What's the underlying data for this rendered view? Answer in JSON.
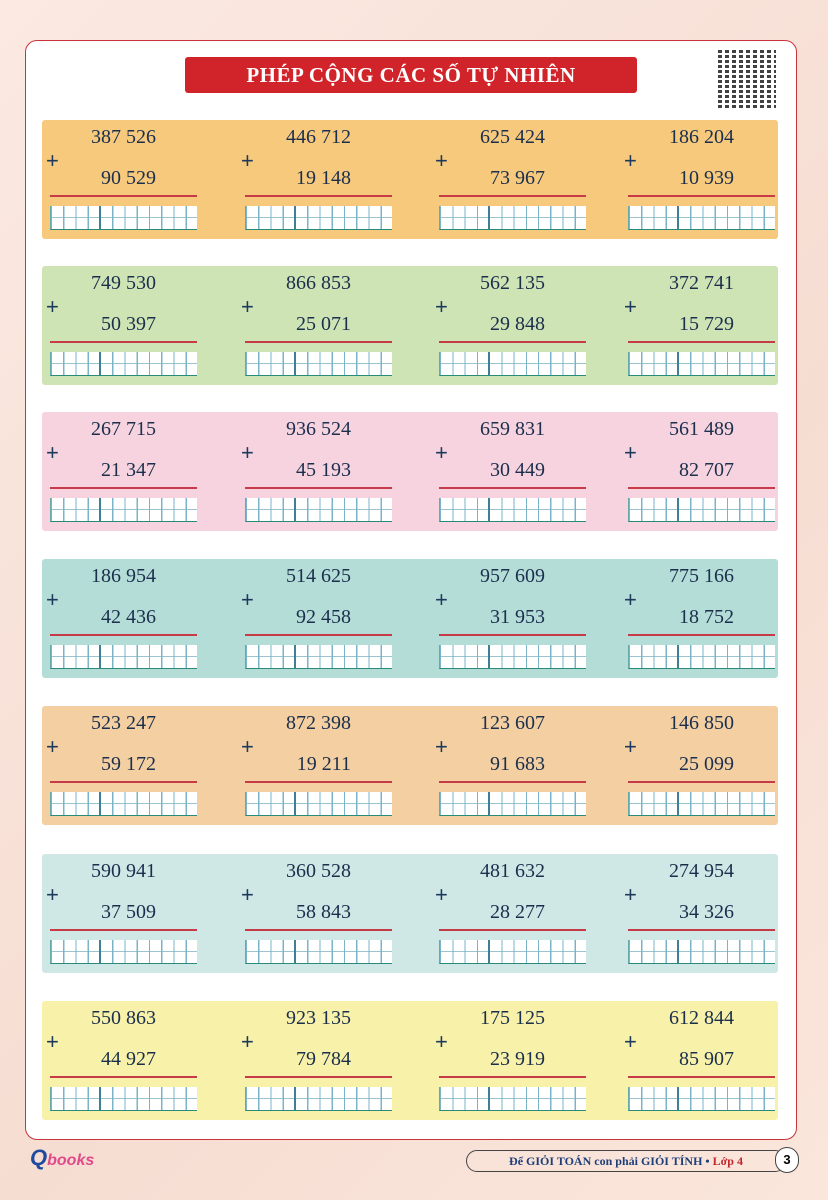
{
  "title": "PHÉP CỘNG CÁC SỐ TỰ NHIÊN",
  "operator": "+",
  "band_colors": [
    "#f7c97c",
    "#cfe4b5",
    "#f6d3df",
    "#b5ddd8",
    "#f4cfa1",
    "#cfe8e6",
    "#f8f1a9"
  ],
  "rows": [
    [
      [
        "387 526",
        "90 529"
      ],
      [
        "446 712",
        "19 148"
      ],
      [
        "625 424",
        "73 967"
      ],
      [
        "186 204",
        "10 939"
      ]
    ],
    [
      [
        "749 530",
        "50 397"
      ],
      [
        "866 853",
        "25 071"
      ],
      [
        "562 135",
        "29 848"
      ],
      [
        "372 741",
        "15 729"
      ]
    ],
    [
      [
        "267 715",
        "21 347"
      ],
      [
        "936 524",
        "45 193"
      ],
      [
        "659 831",
        "30 449"
      ],
      [
        "561 489",
        "82 707"
      ]
    ],
    [
      [
        "186 954",
        "42 436"
      ],
      [
        "514 625",
        "92 458"
      ],
      [
        "957 609",
        "31 953"
      ],
      [
        "775 166",
        "18 752"
      ]
    ],
    [
      [
        "523 247",
        "59 172"
      ],
      [
        "872 398",
        "19 211"
      ],
      [
        "123 607",
        "91 683"
      ],
      [
        "146 850",
        "25 099"
      ]
    ],
    [
      [
        "590 941",
        "37 509"
      ],
      [
        "360 528",
        "58 843"
      ],
      [
        "481 632",
        "28 277"
      ],
      [
        "274 954",
        "34 326"
      ]
    ],
    [
      [
        "550 863",
        "44 927"
      ],
      [
        "923 135",
        "79 784"
      ],
      [
        "175 125",
        "23 919"
      ],
      [
        "612 844",
        "85 907"
      ]
    ]
  ],
  "footer": {
    "text": "Để GIỎI TOÁN con phải GIỎI TÍNH •",
    "grade": "Lớp 4",
    "page": "3"
  },
  "logo": {
    "text": "Qbooks"
  }
}
